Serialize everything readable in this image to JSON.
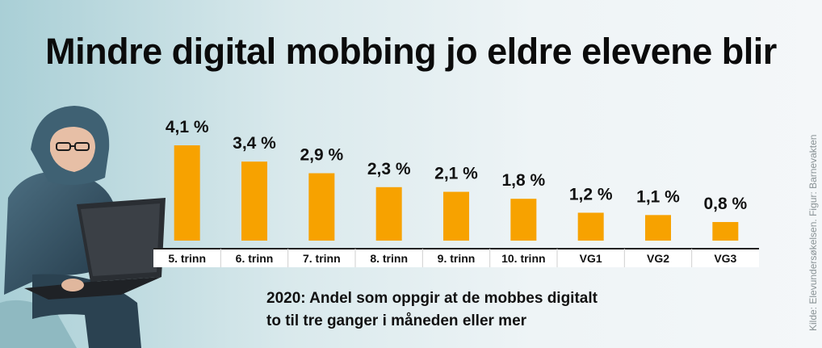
{
  "title": "Mindre digital mobbing jo eldre elevene blir",
  "subtitle_lines": [
    "2020: Andel som oppgir at de mobbes digitalt",
    "to til tre ganger i måneden eller mer"
  ],
  "source": "Kilde: Elevundersøkelsen. Figur: Barnevakten",
  "colors": {
    "bar": "#f7a200",
    "text": "#111111"
  },
  "chart_data": {
    "type": "bar",
    "categories": [
      "5. trinn",
      "6. trinn",
      "7. trinn",
      "8. trinn",
      "9. trinn",
      "10. trinn",
      "VG1",
      "VG2",
      "VG3"
    ],
    "values": [
      4.1,
      3.4,
      2.9,
      2.3,
      2.1,
      1.8,
      1.2,
      1.1,
      0.8
    ],
    "value_labels": [
      "4,1 %",
      "3,4 %",
      "2,9 %",
      "2,3 %",
      "2,1 %",
      "1,8 %",
      "1,2 %",
      "1,1 %",
      "0,8 %"
    ],
    "unit": "%",
    "ylim": [
      0,
      4.1
    ],
    "grid": false,
    "legend": "none"
  }
}
